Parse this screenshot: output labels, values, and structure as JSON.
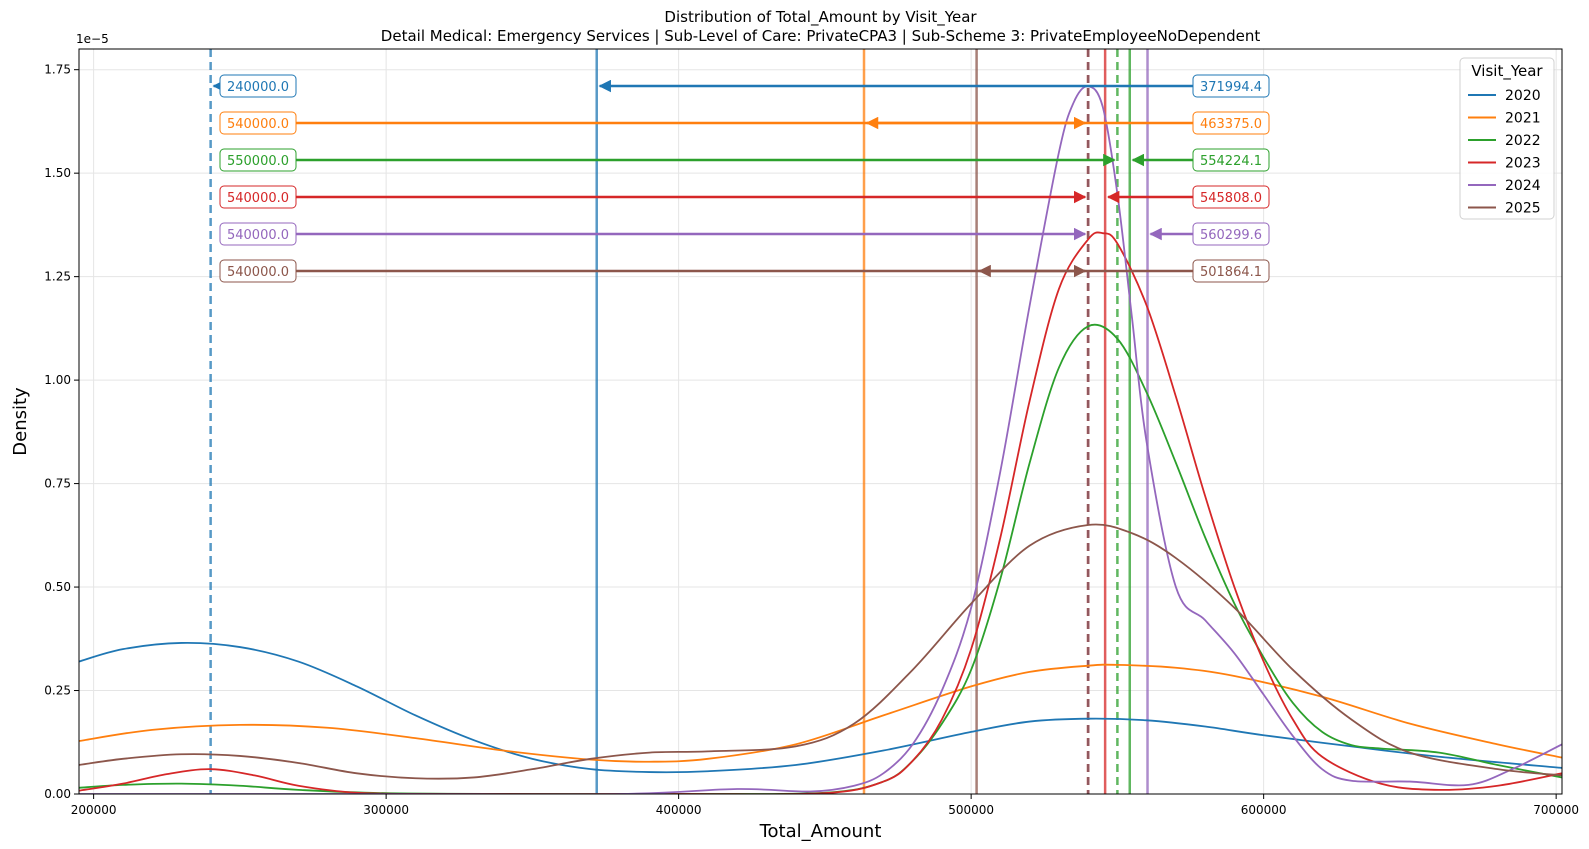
{
  "chart_data": {
    "type": "line",
    "title": "Distribution of Total_Amount by Visit_Year",
    "subtitle": "Detail Medical: Emergency Services | Sub-Level of Care: PrivateCPA3 | Sub-Scheme 3: PrivateEmployeeNoDependent",
    "xlabel": "Total_Amount",
    "ylabel": "Density",
    "y_offset_label": "1e−5",
    "xlim": [
      195000,
      702000
    ],
    "ylim": [
      0,
      1.8
    ],
    "x_ticks": [
      200000,
      300000,
      400000,
      500000,
      600000,
      700000
    ],
    "x_tick_labels": [
      "200000",
      "300000",
      "400000",
      "500000",
      "600000",
      "700000"
    ],
    "y_ticks": [
      0,
      0.25,
      0.5,
      0.75,
      1.0,
      1.25,
      1.5,
      1.75
    ],
    "y_tick_labels": [
      "0.00",
      "0.25",
      "0.50",
      "0.75",
      "1.00",
      "1.25",
      "1.50",
      "1.75"
    ],
    "grid": true,
    "legend": {
      "title": "Visit_Year",
      "position": "top-right"
    },
    "series": [
      {
        "name": "2020",
        "color": "#1f77b4",
        "mean": 371994.4,
        "median": 240000.0,
        "mean_label": "371994.4",
        "median_label": "240000.0",
        "x": [
          195000,
          210000,
          230000,
          250000,
          270000,
          290000,
          310000,
          330000,
          350000,
          370000,
          390000,
          410000,
          440000,
          470000,
          500000,
          520000,
          540000,
          560000,
          580000,
          600000,
          630000,
          660000,
          702000
        ],
        "y": [
          0.32,
          0.35,
          0.365,
          0.355,
          0.32,
          0.26,
          0.19,
          0.13,
          0.085,
          0.06,
          0.053,
          0.055,
          0.07,
          0.105,
          0.15,
          0.175,
          0.182,
          0.178,
          0.163,
          0.142,
          0.115,
          0.09,
          0.063
        ]
      },
      {
        "name": "2021",
        "color": "#ff7f0e",
        "mean": 463375.0,
        "median": 540000.0,
        "mean_label": "463375.0",
        "median_label": "540000.0",
        "x": [
          195000,
          220000,
          250000,
          280000,
          310000,
          340000,
          370000,
          390000,
          410000,
          440000,
          470000,
          500000,
          520000,
          540000,
          550000,
          570000,
          590000,
          620000,
          650000,
          680000,
          702000
        ],
        "y": [
          0.128,
          0.155,
          0.167,
          0.16,
          0.135,
          0.105,
          0.083,
          0.078,
          0.085,
          0.12,
          0.19,
          0.26,
          0.295,
          0.31,
          0.312,
          0.305,
          0.285,
          0.235,
          0.17,
          0.12,
          0.088
        ]
      },
      {
        "name": "2022",
        "color": "#2ca02c",
        "mean": 554224.1,
        "median": 550000.0,
        "mean_label": "554224.1",
        "median_label": "550000.0",
        "x": [
          195000,
          210000,
          230000,
          250000,
          270000,
          300000,
          350000,
          400000,
          450000,
          470000,
          480000,
          490000,
          500000,
          510000,
          520000,
          530000,
          540000,
          550000,
          560000,
          570000,
          580000,
          590000,
          600000,
          610000,
          620000,
          630000,
          640000,
          660000,
          680000,
          702000
        ],
        "y": [
          0.015,
          0.022,
          0.025,
          0.02,
          0.01,
          0.002,
          0.0,
          0.0,
          0.003,
          0.03,
          0.08,
          0.17,
          0.3,
          0.52,
          0.8,
          1.03,
          1.13,
          1.1,
          0.97,
          0.8,
          0.62,
          0.46,
          0.33,
          0.22,
          0.15,
          0.118,
          0.11,
          0.1,
          0.07,
          0.04
        ]
      },
      {
        "name": "2023",
        "color": "#d62728",
        "mean": 545808.0,
        "median": 540000.0,
        "mean_label": "545808.0",
        "median_label": "540000.0",
        "x": [
          195000,
          210000,
          225000,
          240000,
          255000,
          270000,
          290000,
          320000,
          400000,
          450000,
          470000,
          480000,
          490000,
          500000,
          510000,
          520000,
          530000,
          540000,
          545000,
          550000,
          560000,
          570000,
          580000,
          590000,
          600000,
          610000,
          620000,
          640000,
          660000,
          680000,
          702000
        ],
        "y": [
          0.008,
          0.025,
          0.048,
          0.06,
          0.045,
          0.02,
          0.003,
          0.0,
          0.0,
          0.002,
          0.03,
          0.08,
          0.18,
          0.35,
          0.62,
          0.95,
          1.22,
          1.34,
          1.355,
          1.33,
          1.18,
          0.96,
          0.72,
          0.5,
          0.32,
          0.18,
          0.09,
          0.025,
          0.01,
          0.02,
          0.05
        ]
      },
      {
        "name": "2024",
        "color": "#9467bd",
        "mean": 560299.6,
        "median": 540000.0,
        "mean_label": "560299.6",
        "median_label": "540000.0",
        "x": [
          195000,
          300000,
          380000,
          420000,
          445000,
          460000,
          470000,
          480000,
          490000,
          500000,
          510000,
          520000,
          530000,
          535000,
          540000,
          545000,
          550000,
          555000,
          560000,
          570000,
          580000,
          590000,
          600000,
          610000,
          620000,
          630000,
          650000,
          670000,
          685000,
          702000
        ],
        "y": [
          0.0,
          0.0,
          0.0,
          0.012,
          0.006,
          0.02,
          0.05,
          0.12,
          0.25,
          0.45,
          0.78,
          1.18,
          1.55,
          1.67,
          1.71,
          1.66,
          1.45,
          1.15,
          0.85,
          0.5,
          0.42,
          0.34,
          0.24,
          0.14,
          0.06,
          0.032,
          0.03,
          0.022,
          0.06,
          0.12
        ]
      },
      {
        "name": "2025",
        "color": "#8c564b",
        "mean": 501864.1,
        "median": 540000.0,
        "mean_label": "501864.1",
        "median_label": "540000.0",
        "x": [
          195000,
          210000,
          230000,
          250000,
          270000,
          290000,
          310000,
          330000,
          350000,
          370000,
          390000,
          410000,
          440000,
          460000,
          480000,
          500000,
          520000,
          540000,
          555000,
          570000,
          590000,
          610000,
          630000,
          650000,
          680000,
          702000
        ],
        "y": [
          0.07,
          0.085,
          0.096,
          0.092,
          0.075,
          0.05,
          0.038,
          0.04,
          0.06,
          0.085,
          0.1,
          0.103,
          0.115,
          0.17,
          0.3,
          0.46,
          0.6,
          0.65,
          0.63,
          0.57,
          0.45,
          0.3,
          0.18,
          0.1,
          0.06,
          0.045
        ]
      }
    ]
  }
}
